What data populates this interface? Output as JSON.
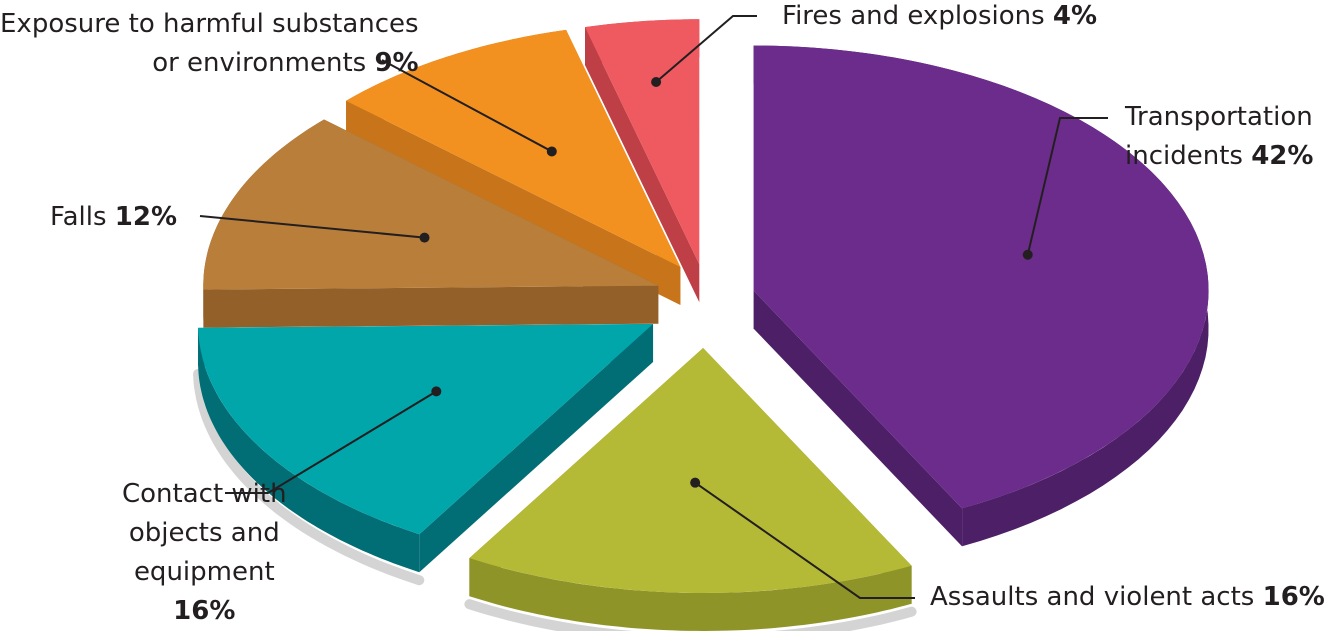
{
  "chart_data": {
    "type": "pie",
    "title": "",
    "slices": [
      {
        "label": "Transportation incidents",
        "label_lines": [
          "Transportation",
          "incidents"
        ],
        "value": 42,
        "pct_text": "42%",
        "color": "#6b2c8c",
        "side_color": "#4c1f66",
        "label_side": "right"
      },
      {
        "label": "Assaults and violent acts",
        "label_lines": [
          "Assaults and violent acts"
        ],
        "value": 16,
        "pct_text": "16%",
        "color": "#b4ba35",
        "side_color": "#8e9428",
        "label_side": "right"
      },
      {
        "label": "Contact with objects and equipment",
        "label_lines": [
          "Contact with",
          "objects and",
          "equipment"
        ],
        "value": 16,
        "pct_text": "16%",
        "color": "#00a6aa",
        "side_color": "#006e74",
        "label_side": "center",
        "pct_on_own_line": true
      },
      {
        "label": "Falls",
        "label_lines": [
          "Falls"
        ],
        "value": 12,
        "pct_text": "12%",
        "color": "#b97f3a",
        "side_color": "#94602a",
        "label_side": "left"
      },
      {
        "label": "Exposure to harmful substances or environments",
        "label_lines": [
          "Exposure to harmful substances",
          "or environments"
        ],
        "value": 9,
        "pct_text": "9%",
        "color": "#f39120",
        "side_color": "#c8741a",
        "label_side": "left"
      },
      {
        "label": "Fires and explosions",
        "label_lines": [
          "Fires and explosions"
        ],
        "value": 4,
        "pct_text": "4%",
        "color": "#ee5a60",
        "side_color": "#be3f45",
        "label_side": "right"
      }
    ]
  }
}
